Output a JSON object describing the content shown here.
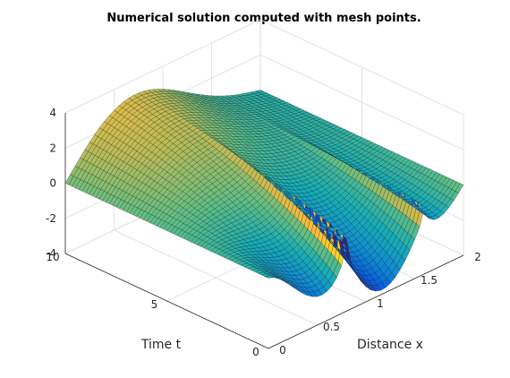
{
  "chart_data": {
    "type": "surface",
    "title": "Numerical solution computed with mesh points.",
    "xlabel": "Distance x",
    "ylabel": "Time t",
    "zlabel": "",
    "xlim": [
      0,
      2
    ],
    "ylim": [
      0,
      10
    ],
    "zlim": [
      -4,
      4
    ],
    "xticks": [
      "0",
      "0.5",
      "1",
      "1.5",
      "2"
    ],
    "yticks": [
      "0",
      "5",
      "10"
    ],
    "zticks": [
      "-4",
      "-2",
      "0",
      "2",
      "4"
    ],
    "grid": true,
    "colormap": "parula",
    "mesh_resolution": {
      "x": 40,
      "t": 60
    },
    "surface": {
      "description_values": {
        "x_grid": [
          0,
          0.5,
          1,
          1.5,
          2
        ],
        "u_at_t10": [
          0,
          2.7,
          1.3,
          0.0,
          0
        ],
        "u_at_t0": [
          0,
          -2.2,
          0.0,
          -2.5,
          0
        ]
      }
    }
  }
}
